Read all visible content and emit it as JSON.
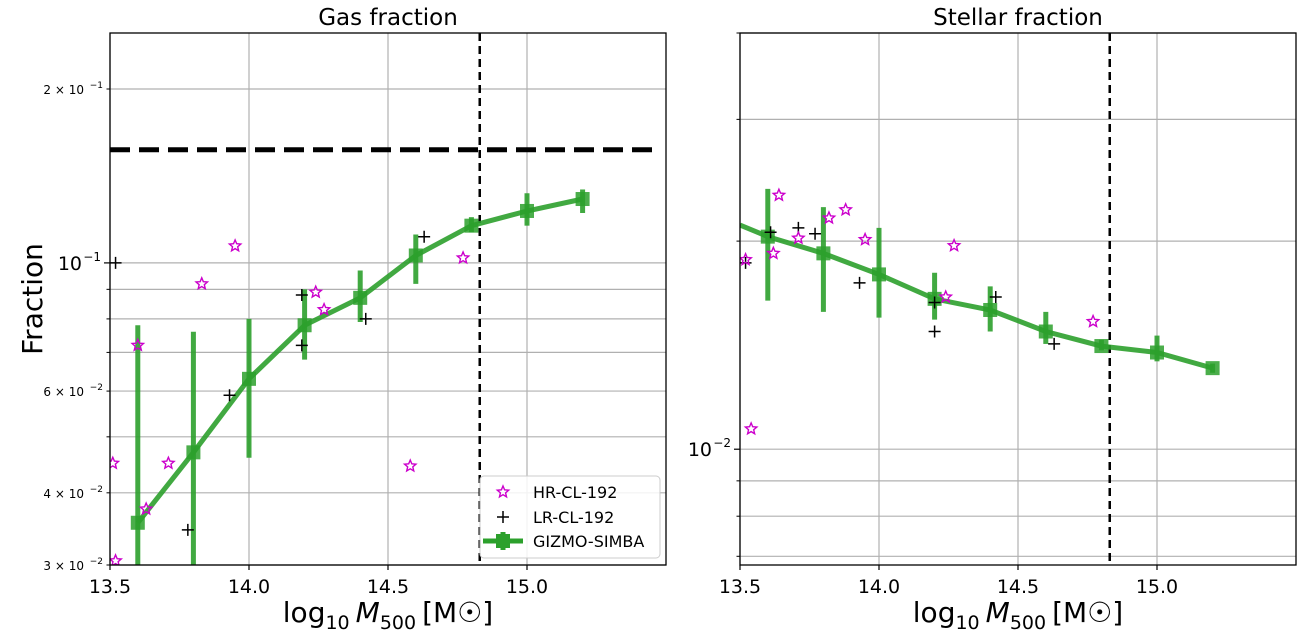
{
  "chart_data": [
    {
      "type": "line",
      "title": "Gas fraction",
      "xlabel": "log10 M500 [M☉]",
      "ylabel": "Fraction",
      "xlim": [
        13.5,
        15.5
      ],
      "ylim": [
        0.03,
        0.25
      ],
      "yscale": "log",
      "grid": true,
      "legend_position": "bottom-right",
      "x_ticks": [
        {
          "value": 13.5,
          "label": "13.5"
        },
        {
          "value": 14.0,
          "label": "14.0"
        },
        {
          "value": 14.5,
          "label": "14.5"
        },
        {
          "value": 15.0,
          "label": "15.0"
        }
      ],
      "y_ticks_major": [
        {
          "value": 0.1,
          "label": "10",
          "exp": "−1"
        }
      ],
      "y_ticks_minor": [
        {
          "value": 0.03,
          "label": "3 × 10",
          "exp": "−2"
        },
        {
          "value": 0.04,
          "label": "4 × 10",
          "exp": "−2"
        },
        {
          "value": 0.05,
          "label": "",
          "exp": ""
        },
        {
          "value": 0.06,
          "label": "6 × 10",
          "exp": "−2"
        },
        {
          "value": 0.07,
          "label": "",
          "exp": ""
        },
        {
          "value": 0.08,
          "label": "",
          "exp": ""
        },
        {
          "value": 0.09,
          "label": "",
          "exp": ""
        },
        {
          "value": 0.2,
          "label": "2 × 10",
          "exp": "−1"
        }
      ],
      "hline": {
        "y": 0.157,
        "style": "dashed"
      },
      "vline": {
        "x": 14.83,
        "style": "dashed"
      },
      "series": [
        {
          "name": "HR-CL-192",
          "marker": "star",
          "color": "#cc00cc",
          "points": [
            [
              13.52,
              0.0305
            ],
            [
              13.51,
              0.045
            ],
            [
              13.63,
              0.0375
            ],
            [
              13.71,
              0.045
            ],
            [
              13.6,
              0.072
            ],
            [
              13.83,
              0.092
            ],
            [
              13.95,
              0.107
            ],
            [
              14.24,
              0.089
            ],
            [
              14.27,
              0.083
            ],
            [
              14.58,
              0.0445
            ],
            [
              14.77,
              0.102
            ]
          ]
        },
        {
          "name": "LR-CL-192",
          "marker": "plus",
          "color": "#000000",
          "points": [
            [
              13.52,
              0.1
            ],
            [
              13.78,
              0.0345
            ],
            [
              13.93,
              0.059
            ],
            [
              14.19,
              0.088
            ],
            [
              14.19,
              0.072
            ],
            [
              14.42,
              0.08
            ],
            [
              14.63,
              0.111
            ]
          ]
        },
        {
          "name": "GIZMO-SIMBA",
          "marker": "square",
          "color": "#2ca02c",
          "points": [
            [
              13.6,
              0.0355
            ],
            [
              13.8,
              0.047
            ],
            [
              14.0,
              0.063
            ],
            [
              14.2,
              0.078
            ],
            [
              14.4,
              0.087
            ],
            [
              14.6,
              0.103
            ],
            [
              14.8,
              0.116
            ],
            [
              15.0,
              0.123
            ],
            [
              15.2,
              0.129
            ]
          ],
          "err_low": [
            0.03,
            0.03,
            0.046,
            0.068,
            0.079,
            0.092,
            0.113,
            0.116,
            0.122
          ],
          "err_high": [
            0.078,
            0.076,
            0.08,
            0.09,
            0.097,
            0.112,
            0.12,
            0.132,
            0.134
          ]
        }
      ]
    },
    {
      "type": "line",
      "title": "Stellar fraction",
      "xlabel": "log10 M500 [M☉]",
      "ylabel": "",
      "xlim": [
        13.5,
        15.5
      ],
      "ylim": [
        0.0068,
        0.04
      ],
      "yscale": "log",
      "grid": true,
      "x_ticks": [
        {
          "value": 13.5,
          "label": "13.5"
        },
        {
          "value": 14.0,
          "label": "14.0"
        },
        {
          "value": 14.5,
          "label": "14.5"
        },
        {
          "value": 15.0,
          "label": "15.0"
        }
      ],
      "y_ticks_major": [
        {
          "value": 0.01,
          "label": "10",
          "exp": "−2"
        }
      ],
      "y_ticks_minor": [
        {
          "value": 0.007,
          "label": "",
          "exp": ""
        },
        {
          "value": 0.008,
          "label": "",
          "exp": ""
        },
        {
          "value": 0.009,
          "label": "",
          "exp": ""
        },
        {
          "value": 0.02,
          "label": "",
          "exp": ""
        },
        {
          "value": 0.03,
          "label": "",
          "exp": ""
        },
        {
          "value": 0.04,
          "label": "",
          "exp": ""
        }
      ],
      "vline": {
        "x": 14.83,
        "style": "dashed"
      },
      "series": [
        {
          "name": "HR-CL-192",
          "marker": "star",
          "color": "#cc00cc",
          "points": [
            [
              13.52,
              0.0188
            ],
            [
              13.54,
              0.0107
            ],
            [
              13.64,
              0.0233
            ],
            [
              13.62,
              0.0192
            ],
            [
              13.71,
              0.0202
            ],
            [
              13.82,
              0.0216
            ],
            [
              13.88,
              0.0222
            ],
            [
              13.95,
              0.0201
            ],
            [
              14.24,
              0.0166
            ],
            [
              14.27,
              0.0197
            ],
            [
              14.77,
              0.0153
            ]
          ]
        },
        {
          "name": "LR-CL-192",
          "marker": "plus",
          "color": "#000000",
          "points": [
            [
              13.52,
              0.0186
            ],
            [
              13.61,
              0.0206
            ],
            [
              13.71,
              0.0209
            ],
            [
              13.77,
              0.0205
            ],
            [
              13.93,
              0.0174
            ],
            [
              14.2,
              0.0148
            ],
            [
              14.2,
              0.0163
            ],
            [
              14.42,
              0.0166
            ],
            [
              14.63,
              0.0142
            ]
          ]
        },
        {
          "name": "GIZMO-SIMBA",
          "marker": "square",
          "color": "#2ca02c",
          "points": [
            [
              13.5,
              0.0211
            ],
            [
              13.6,
              0.0203
            ],
            [
              13.8,
              0.0192
            ],
            [
              14.0,
              0.0179
            ],
            [
              14.2,
              0.0165
            ],
            [
              14.4,
              0.0159
            ],
            [
              14.6,
              0.0148
            ],
            [
              14.8,
              0.0141
            ],
            [
              15.0,
              0.0138
            ],
            [
              15.2,
              0.0131
            ]
          ],
          "err_low": [
            null,
            0.0164,
            0.0158,
            0.0155,
            0.0154,
            0.0148,
            0.0142,
            0.0139,
            0.0134,
            0.0129
          ],
          "err_high": [
            null,
            0.0238,
            0.0224,
            0.0209,
            0.018,
            0.0172,
            0.0158,
            0.0144,
            0.0146,
            0.0133
          ]
        }
      ]
    }
  ]
}
